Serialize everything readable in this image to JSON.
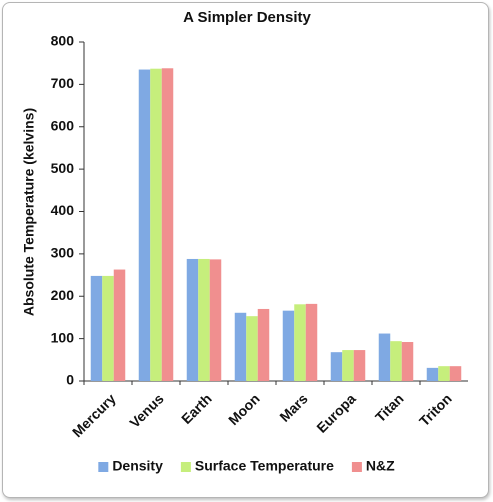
{
  "chart_data": {
    "type": "bar",
    "title": "A Simpler Density",
    "y_label": "Absolute Temperature (kelvins)",
    "categories": [
      "Mercury",
      "Venus",
      "Earth",
      "Moon",
      "Mars",
      "Europa",
      "Titan",
      "Triton"
    ],
    "series": [
      {
        "name": "Density",
        "color": "#7fa9e3",
        "values": [
          248,
          735,
          288,
          161,
          166,
          68,
          112,
          31
        ]
      },
      {
        "name": "Surface Temperature",
        "color": "#c6ee7c",
        "values": [
          248,
          737,
          288,
          153,
          181,
          73,
          94,
          35
        ]
      },
      {
        "name": "N&Z",
        "color": "#f08f8f",
        "values": [
          263,
          738,
          287,
          170,
          182,
          73,
          92,
          35
        ]
      }
    ],
    "ylim": [
      0,
      800
    ],
    "yticks": [
      0,
      100,
      200,
      300,
      400,
      500,
      600,
      700,
      800
    ],
    "grid": false,
    "legend": "bottom"
  }
}
